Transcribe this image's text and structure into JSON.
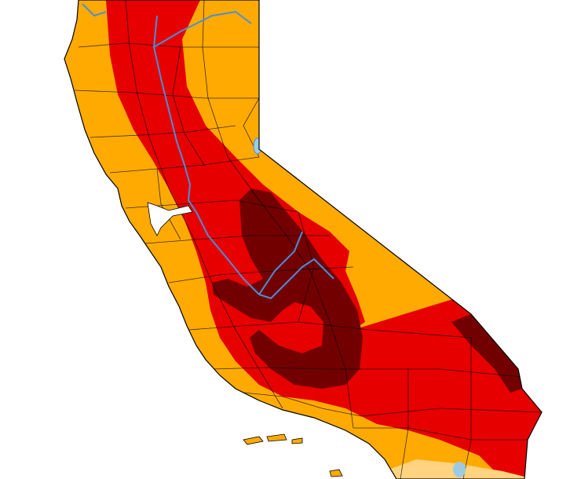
{
  "map": {
    "region": "california",
    "colors": {
      "background": "#ffffff",
      "abnormally_dry": "#ffd37f",
      "severe": "#ffaa00",
      "extreme": "#e60000",
      "exceptional": "#730000",
      "county_lines": "#000000",
      "rivers": "#4a8fd6",
      "lakes": "#9ecae1"
    }
  }
}
